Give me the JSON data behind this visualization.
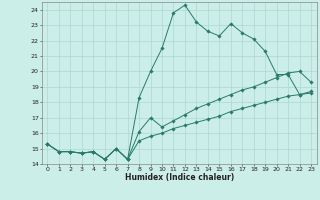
{
  "xlabel": "Humidex (Indice chaleur)",
  "bg_color": "#cceee8",
  "line_color": "#2a7a6a",
  "grid_color": "#aad8d0",
  "ylim": [
    14,
    24.5
  ],
  "xlim": [
    -0.5,
    23.5
  ],
  "yticks": [
    14,
    15,
    16,
    17,
    18,
    19,
    20,
    21,
    22,
    23,
    24
  ],
  "xticks": [
    0,
    1,
    2,
    3,
    4,
    5,
    6,
    7,
    8,
    9,
    10,
    11,
    12,
    13,
    14,
    15,
    16,
    17,
    18,
    19,
    20,
    21,
    22,
    23
  ],
  "line1_x": [
    0,
    1,
    2,
    3,
    4,
    5,
    6,
    7,
    8,
    9,
    10,
    11,
    12,
    13,
    14,
    15,
    16,
    17,
    18,
    19,
    20,
    21,
    22,
    23
  ],
  "line1_y": [
    15.3,
    14.8,
    14.8,
    14.7,
    14.8,
    14.3,
    15.0,
    14.3,
    18.3,
    20.0,
    21.5,
    23.8,
    24.3,
    23.2,
    22.6,
    22.3,
    23.1,
    22.5,
    22.1,
    21.3,
    19.8,
    19.8,
    18.5,
    18.7
  ],
  "line2_x": [
    0,
    1,
    2,
    3,
    4,
    5,
    6,
    7,
    8,
    9,
    10,
    11,
    12,
    13,
    14,
    15,
    16,
    17,
    18,
    19,
    20,
    21,
    22,
    23
  ],
  "line2_y": [
    15.3,
    14.8,
    14.8,
    14.7,
    14.8,
    14.3,
    15.0,
    14.3,
    16.1,
    17.0,
    16.4,
    16.8,
    17.2,
    17.6,
    17.9,
    18.2,
    18.5,
    18.8,
    19.0,
    19.3,
    19.6,
    19.9,
    20.0,
    19.3
  ],
  "line3_x": [
    0,
    1,
    2,
    3,
    4,
    5,
    6,
    7,
    8,
    9,
    10,
    11,
    12,
    13,
    14,
    15,
    16,
    17,
    18,
    19,
    20,
    21,
    22,
    23
  ],
  "line3_y": [
    15.3,
    14.8,
    14.8,
    14.7,
    14.8,
    14.3,
    15.0,
    14.3,
    15.5,
    15.8,
    16.0,
    16.3,
    16.5,
    16.7,
    16.9,
    17.1,
    17.4,
    17.6,
    17.8,
    18.0,
    18.2,
    18.4,
    18.5,
    18.6
  ]
}
